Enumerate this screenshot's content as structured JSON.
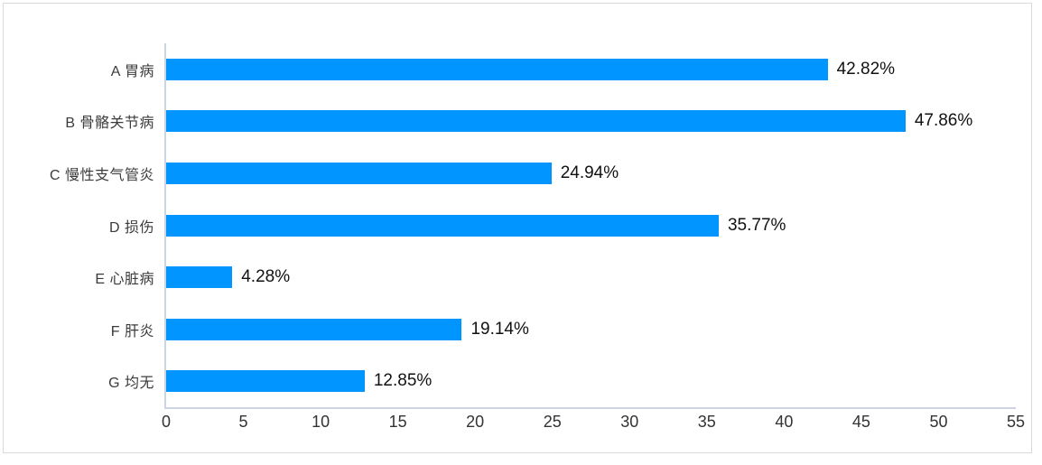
{
  "chart_data": {
    "type": "bar",
    "orientation": "horizontal",
    "title": "",
    "xlabel": "",
    "ylabel": "",
    "categories": [
      "A 胃病",
      "B 骨骼关节病",
      "C 慢性支气管炎",
      "D 损伤",
      "E 心脏病",
      "F 肝炎",
      "G 均无"
    ],
    "values": [
      42.82,
      47.86,
      24.94,
      35.77,
      4.28,
      19.14,
      12.85
    ],
    "value_labels": [
      "42.82%",
      "47.86%",
      "24.94%",
      "35.77%",
      "4.28%",
      "19.14%",
      "12.85%"
    ],
    "xlim": [
      0,
      55
    ],
    "xticks": [
      0,
      5,
      10,
      15,
      20,
      25,
      30,
      35,
      40,
      45,
      50,
      55
    ],
    "grid": false,
    "legend": "none",
    "colors": {
      "bar": "#0095ff",
      "axis_line": "#ccd4e6",
      "category_text": "#3b3b3b",
      "value_text": "#111111",
      "tick_text": "#333333",
      "frame_border": "#d9d9d9",
      "background": "#ffffff"
    }
  }
}
